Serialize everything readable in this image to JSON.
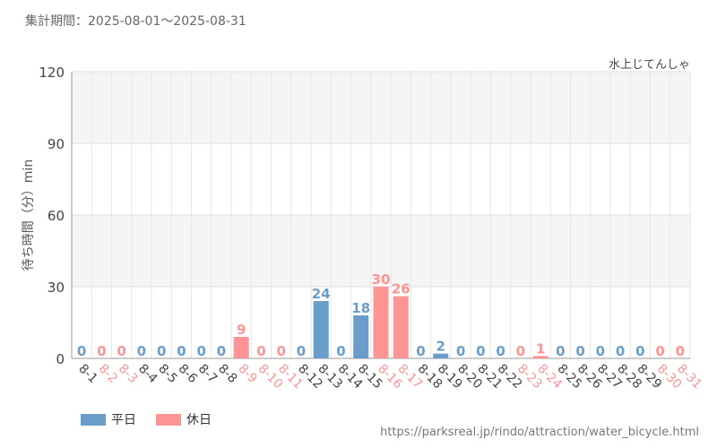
{
  "period": "集計期間：2025-08-01～2025-08-31",
  "source_url": "https://parksreal.jp/rindo/attraction/water_bicycle.html",
  "colors": {
    "weekday": "#6a9dc9",
    "holiday": "#ff9494"
  },
  "chart_data": {
    "type": "bar",
    "title": "水上じてんしゃ",
    "xlabel": "",
    "ylabel": "待ち時間（分）min",
    "ylim": [
      0,
      120
    ],
    "yticks": [
      0,
      30,
      60,
      90,
      120
    ],
    "grid": true,
    "legend_position": "bottom-left",
    "legend": [
      {
        "name": "平日",
        "key": "weekday"
      },
      {
        "name": "休日",
        "key": "holiday"
      }
    ],
    "categories": [
      "8-1",
      "8-2",
      "8-3",
      "8-4",
      "8-5",
      "8-6",
      "8-7",
      "8-8",
      "8-9",
      "8-10",
      "8-11",
      "8-12",
      "8-13",
      "8-14",
      "8-15",
      "8-16",
      "8-17",
      "8-18",
      "8-19",
      "8-20",
      "8-21",
      "8-22",
      "8-23",
      "8-24",
      "8-25",
      "8-26",
      "8-27",
      "8-28",
      "8-29",
      "8-30",
      "8-31"
    ],
    "values": [
      0,
      0,
      0,
      0,
      0,
      0,
      0,
      0,
      9,
      0,
      0,
      0,
      24,
      0,
      18,
      30,
      26,
      0,
      2,
      0,
      0,
      0,
      0,
      1,
      0,
      0,
      0,
      0,
      0,
      0,
      0
    ],
    "day_type": [
      "weekday",
      "holiday",
      "holiday",
      "weekday",
      "weekday",
      "weekday",
      "weekday",
      "weekday",
      "holiday",
      "holiday",
      "holiday",
      "weekday",
      "weekday",
      "weekday",
      "weekday",
      "holiday",
      "holiday",
      "weekday",
      "weekday",
      "weekday",
      "weekday",
      "weekday",
      "holiday",
      "holiday",
      "weekday",
      "weekday",
      "weekday",
      "weekday",
      "weekday",
      "holiday",
      "holiday"
    ]
  }
}
